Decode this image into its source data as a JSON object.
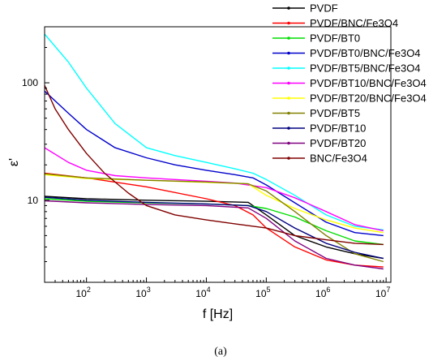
{
  "chart_data": {
    "type": "line",
    "title": "",
    "xlabel": "f [Hz]",
    "ylabel": "ε'",
    "caption": "(a)",
    "x_scale": "log",
    "y_scale": "log",
    "xlim": [
      20,
      12000000
    ],
    "ylim": [
      2,
      300
    ],
    "x_ticks": [
      "10^2",
      "10^3",
      "10^4",
      "10^5",
      "10^6",
      "10^7"
    ],
    "y_ticks": [
      "10",
      "100"
    ],
    "grid": false,
    "legend": "right",
    "series": [
      {
        "name": "PVDF",
        "color": "#000000",
        "x": [
          20,
          100,
          1000,
          10000,
          50000,
          100000,
          300000,
          1000000,
          3000000,
          9000000
        ],
        "y": [
          10.8,
          10.3,
          10.0,
          9.8,
          9.6,
          7.5,
          5.0,
          4.0,
          3.5,
          3.2
        ]
      },
      {
        "name": "PVDF/BNC/Fe3O4",
        "color": "#ff0000",
        "x": [
          20,
          100,
          1000,
          10000,
          30000,
          60000,
          100000,
          300000,
          1000000,
          3000000,
          9000000
        ],
        "y": [
          17.0,
          15.5,
          13.0,
          10.3,
          9.0,
          7.5,
          5.8,
          4.0,
          3.1,
          2.8,
          2.7
        ]
      },
      {
        "name": "PVDF/BT0",
        "color": "#00dd00",
        "x": [
          20,
          100,
          1000,
          10000,
          50000,
          100000,
          300000,
          1000000,
          3000000,
          9000000
        ],
        "y": [
          10.3,
          9.8,
          9.5,
          9.3,
          9.0,
          8.5,
          7.2,
          5.5,
          4.5,
          4.2
        ]
      },
      {
        "name": "PVDF/BT0/BNC/Fe3O4",
        "color": "#0000cc",
        "x": [
          20,
          50,
          100,
          300,
          1000,
          3000,
          10000,
          30000,
          60000,
          100000,
          300000,
          1000000,
          3000000,
          9000000
        ],
        "y": [
          85,
          55,
          40,
          28,
          23,
          20,
          18,
          16.5,
          15.5,
          13.5,
          9.5,
          6.5,
          5.3,
          5.0
        ]
      },
      {
        "name": "PVDF/BT5/BNC/Fe3O4",
        "color": "#00ffff",
        "x": [
          20,
          50,
          100,
          300,
          1000,
          3000,
          10000,
          30000,
          60000,
          100000,
          300000,
          1000000,
          3000000,
          9000000
        ],
        "y": [
          260,
          150,
          90,
          45,
          28,
          24,
          21,
          18.5,
          17,
          15,
          11,
          7.5,
          6.0,
          5.6
        ]
      },
      {
        "name": "PVDF/BT10/BNC/Fe3O4",
        "color": "#ff00ff",
        "x": [
          20,
          50,
          100,
          300,
          1000,
          3000,
          10000,
          30000,
          100000,
          300000,
          1000000,
          3000000,
          9000000
        ],
        "y": [
          28,
          21,
          18,
          16.2,
          15.5,
          15.0,
          14.5,
          14.0,
          12.8,
          10.5,
          8.0,
          6.2,
          5.5
        ]
      },
      {
        "name": "PVDF/BT20/BNC/Fe3O4",
        "color": "#ffff00",
        "x": [
          20,
          100,
          1000,
          10000,
          50000,
          100000,
          300000,
          1000000,
          3000000,
          9000000
        ],
        "y": [
          16.5,
          15.3,
          14.8,
          14.2,
          13.8,
          11.0,
          8.5,
          6.8,
          5.8,
          5.3
        ]
      },
      {
        "name": "PVDF/BT5",
        "color": "#808000",
        "x": [
          20,
          100,
          1000,
          10000,
          50000,
          100000,
          300000,
          1000000,
          3000000,
          9000000
        ],
        "y": [
          16.8,
          15.5,
          14.8,
          14.3,
          13.8,
          12.0,
          8.0,
          5.0,
          3.5,
          3.0
        ]
      },
      {
        "name": "PVDF/BT10",
        "color": "#000080",
        "x": [
          20,
          100,
          1000,
          10000,
          50000,
          100000,
          300000,
          1000000,
          3000000,
          9000000
        ],
        "y": [
          10.6,
          10.0,
          9.6,
          9.3,
          9.0,
          8.0,
          5.8,
          4.3,
          3.6,
          3.2
        ]
      },
      {
        "name": "PVDF/BT20",
        "color": "#800080",
        "x": [
          20,
          100,
          1000,
          10000,
          50000,
          100000,
          300000,
          1000000,
          3000000,
          9000000
        ],
        "y": [
          9.9,
          9.5,
          9.2,
          9.0,
          8.6,
          7.0,
          4.5,
          3.2,
          2.8,
          2.6
        ]
      },
      {
        "name": "BNC/Fe3O4",
        "color": "#800000",
        "x": [
          20,
          30,
          50,
          100,
          200,
          500,
          1000,
          3000,
          10000,
          30000,
          100000,
          300000,
          1000000,
          3000000,
          9000000
        ],
        "y": [
          95,
          60,
          40,
          25,
          17,
          11.5,
          9.0,
          7.5,
          6.8,
          6.3,
          5.8,
          5.0,
          4.6,
          4.3,
          4.2
        ]
      }
    ]
  }
}
